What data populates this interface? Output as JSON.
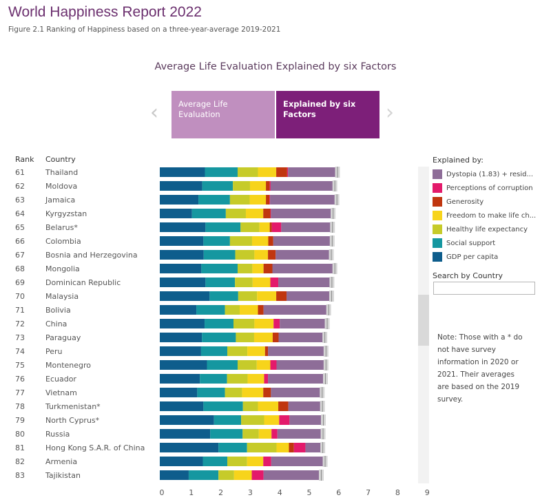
{
  "header": {
    "title": "World Happiness Report 2022",
    "subtitle": "Figure 2.1 Ranking of Happiness based on a three-year-average 2019-2021"
  },
  "chart_heading": "Average Life Evaluation Explained by six Factors",
  "tabs": [
    {
      "label": "Average Life Evaluation",
      "active": false
    },
    {
      "label": "Explained by six Factors",
      "active": true
    }
  ],
  "nav": {
    "prev": "‹",
    "next": "›"
  },
  "columns": {
    "rank": "Rank",
    "country": "Country"
  },
  "legend": {
    "title": "Explained by:",
    "items": [
      {
        "label": "Dystopia (1.83) + resid...",
        "color": "#8e6d98"
      },
      {
        "label": "Perceptions of corruption",
        "color": "#e31a6b"
      },
      {
        "label": "Generosity",
        "color": "#c0360f"
      },
      {
        "label": "Freedom to make life ch...",
        "color": "#f7d41b"
      },
      {
        "label": "Healthy life expectancy",
        "color": "#c6cb2a"
      },
      {
        "label": "Social support",
        "color": "#1597a0"
      },
      {
        "label": "GDP per capita",
        "color": "#0e5d8c"
      }
    ]
  },
  "search": {
    "label": "Search by Country",
    "placeholder": ""
  },
  "note": "Note: Those with a * do not have survey information in 2020 or 2021. Their averages are based on the 2019 survey.",
  "chart_data": {
    "type": "bar",
    "orientation": "horizontal",
    "stacked": true,
    "title": "Average Life Evaluation Explained by six Factors",
    "xlim": [
      0,
      9
    ],
    "xticks": [
      0,
      1,
      2,
      3,
      4,
      5,
      6,
      7,
      8,
      9
    ],
    "segment_order": [
      "GDP per capita",
      "Social support",
      "Healthy life expectancy",
      "Freedom to make life choices",
      "Generosity",
      "Perceptions of corruption",
      "Dystopia (1.83) + residual"
    ],
    "rows": [
      {
        "rank": "61",
        "country": "Thailand",
        "values": [
          1.53,
          1.11,
          0.69,
          0.62,
          0.37,
          0.03,
          1.62
        ]
      },
      {
        "rank": "62",
        "country": "Moldova",
        "values": [
          1.44,
          1.04,
          0.58,
          0.54,
          0.13,
          0.03,
          2.12
        ]
      },
      {
        "rank": "63",
        "country": "Jamaica",
        "values": [
          1.31,
          1.07,
          0.67,
          0.55,
          0.12,
          0.02,
          2.21
        ]
      },
      {
        "rank": "64",
        "country": "Kyrgyzstan",
        "values": [
          1.09,
          1.15,
          0.68,
          0.59,
          0.24,
          0.02,
          2.05
        ]
      },
      {
        "rank": "65",
        "country": "Belarus*",
        "values": [
          1.55,
          1.19,
          0.64,
          0.35,
          0.07,
          0.32,
          1.68
        ]
      },
      {
        "rank": "66",
        "country": "Colombia",
        "values": [
          1.48,
          0.9,
          0.75,
          0.55,
          0.17,
          0.0,
          1.94
        ]
      },
      {
        "rank": "67",
        "country": "Bosnia and Herzegovina",
        "values": [
          1.49,
          1.07,
          0.65,
          0.46,
          0.26,
          0.0,
          1.83
        ]
      },
      {
        "rank": "68",
        "country": "Mongolia",
        "values": [
          1.41,
          1.23,
          0.5,
          0.38,
          0.3,
          0.0,
          2.06
        ]
      },
      {
        "rank": "69",
        "country": "Dominican Republic",
        "values": [
          1.55,
          1.0,
          0.6,
          0.6,
          0.0,
          0.27,
          1.76
        ]
      },
      {
        "rank": "70",
        "country": "Malaysia",
        "values": [
          1.69,
          0.97,
          0.64,
          0.65,
          0.35,
          0.0,
          1.47
        ]
      },
      {
        "rank": "71",
        "country": "Bolivia",
        "values": [
          1.24,
          0.97,
          0.5,
          0.62,
          0.19,
          0.0,
          2.15
        ]
      },
      {
        "rank": "72",
        "country": "China",
        "values": [
          1.52,
          0.98,
          0.71,
          0.65,
          0.0,
          0.21,
          1.55
        ]
      },
      {
        "rank": "73",
        "country": "Paraguay",
        "values": [
          1.43,
          1.15,
          0.62,
          0.63,
          0.2,
          0.0,
          1.51
        ]
      },
      {
        "rank": "74",
        "country": "Peru",
        "values": [
          1.4,
          0.89,
          0.68,
          0.6,
          0.1,
          0.0,
          1.91
        ]
      },
      {
        "rank": "75",
        "country": "Montenegro",
        "values": [
          1.6,
          1.04,
          0.65,
          0.46,
          0.0,
          0.21,
          1.62
        ]
      },
      {
        "rank": "76",
        "country": "Ecuador",
        "values": [
          1.36,
          0.92,
          0.7,
          0.56,
          0.0,
          0.13,
          1.89
        ]
      },
      {
        "rank": "77",
        "country": "Vietnam",
        "values": [
          1.27,
          0.94,
          0.58,
          0.72,
          0.26,
          0.0,
          1.68
        ]
      },
      {
        "rank": "78",
        "country": "Turkmenistan*",
        "values": [
          1.48,
          1.34,
          0.51,
          0.69,
          0.34,
          0.0,
          1.1
        ]
      },
      {
        "rank": "79",
        "country": "North Cyprus*",
        "values": [
          1.84,
          0.92,
          0.78,
          0.51,
          0.0,
          0.35,
          1.09
        ]
      },
      {
        "rank": "80",
        "country": "Russia",
        "values": [
          1.71,
          1.1,
          0.55,
          0.43,
          0.0,
          0.2,
          1.49
        ]
      },
      {
        "rank": "81",
        "country": "Hong Kong S.A.R. of China",
        "values": [
          1.99,
          0.97,
          1.0,
          0.42,
          0.17,
          0.39,
          0.53
        ]
      },
      {
        "rank": "82",
        "country": "Armenia",
        "values": [
          1.46,
          0.83,
          0.67,
          0.55,
          0.0,
          0.27,
          1.77
        ]
      },
      {
        "rank": "83",
        "country": "Tajikistan",
        "values": [
          0.98,
          1.01,
          0.53,
          0.6,
          0.0,
          0.4,
          1.9
        ]
      }
    ]
  }
}
